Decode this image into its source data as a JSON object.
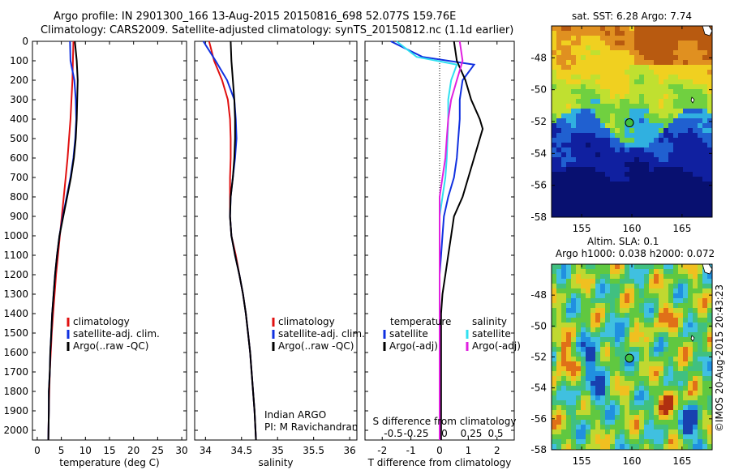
{
  "title_line1": "Argo profile: IN 2901300_166 13-Aug-2015 20150816_698 52.077S 159.76E",
  "title_line2": "Climatology: CARS2009. Satellite-adjusted climatology: synTS_20150812.nc (1.1d earlier)",
  "colors": {
    "climatology": "#e01010",
    "satellite": "#1030e0",
    "argo": "#000000",
    "sat_salinity": "#30e0f0",
    "argo_salinity": "#e020e0",
    "marker": "#40c040"
  },
  "chart_data": [
    {
      "type": "line",
      "name": "temperature",
      "xlabel": "temperature (deg C)",
      "ylabel": "",
      "xlim": [
        -1,
        31
      ],
      "ylim": [
        2050,
        0
      ],
      "xticks": [
        0,
        5,
        10,
        15,
        20,
        25,
        30
      ],
      "yticks": [
        0,
        100,
        200,
        300,
        400,
        500,
        600,
        700,
        800,
        900,
        1000,
        1100,
        1200,
        1300,
        1400,
        1500,
        1600,
        1700,
        1800,
        1900,
        2000
      ],
      "legend": [
        "climatology",
        "satellite-adj. clim.",
        "Argo(..raw -QC)"
      ],
      "series": [
        {
          "name": "climatology",
          "x": [
            7.5,
            7.4,
            7.3,
            7.1,
            6.9,
            6.6,
            6.3,
            5.9,
            5.5,
            5.1,
            4.7,
            4.3,
            3.9,
            3.6,
            3.3,
            3.0,
            2.8,
            2.6,
            2.5,
            2.4,
            2.3
          ],
          "y": [
            0,
            100,
            200,
            300,
            400,
            500,
            600,
            700,
            800,
            900,
            1000,
            1100,
            1200,
            1300,
            1400,
            1500,
            1600,
            1700,
            1800,
            1900,
            2050
          ]
        },
        {
          "name": "satellite-adj. clim.",
          "x": [
            6.8,
            6.9,
            7.7,
            8.0,
            8.1,
            7.9,
            7.5,
            6.9,
            6.1,
            5.3,
            4.6,
            4.1,
            3.7,
            3.4,
            3.1,
            2.9,
            2.7,
            2.6,
            2.4,
            2.4,
            2.3
          ],
          "y": [
            0,
            100,
            200,
            300,
            400,
            500,
            600,
            700,
            800,
            900,
            1000,
            1100,
            1200,
            1300,
            1400,
            1500,
            1600,
            1700,
            1800,
            1900,
            2050
          ]
        },
        {
          "name": "Argo(..raw -QC)",
          "x": [
            7.8,
            8.2,
            8.4,
            8.3,
            8.2,
            8.0,
            7.6,
            7.0,
            6.2,
            5.4,
            4.6,
            4.1,
            3.7,
            3.4,
            3.1,
            2.9,
            2.7,
            2.6,
            2.4,
            2.4,
            2.3
          ],
          "y": [
            0,
            100,
            200,
            300,
            400,
            500,
            600,
            700,
            800,
            900,
            1000,
            1100,
            1200,
            1300,
            1400,
            1500,
            1600,
            1700,
            1800,
            1900,
            2050
          ]
        }
      ]
    },
    {
      "type": "line",
      "name": "salinity",
      "xlabel": "salinity",
      "xlim": [
        33.85,
        36.1
      ],
      "ylim": [
        2050,
        0
      ],
      "xticks": [
        34,
        34.5,
        35,
        35.5,
        36
      ],
      "yticks": [
        0,
        100,
        200,
        300,
        400,
        500,
        600,
        700,
        800,
        900,
        1000,
        1100,
        1200,
        1300,
        1400,
        1500,
        1600,
        1700,
        1800,
        1900,
        2000
      ],
      "legend": [
        "climatology",
        "satellite-adj. clim.",
        "Argo(..raw -QC)"
      ],
      "annotation": [
        "Indian ARGO",
        "PI: M Ravichandran"
      ],
      "series": [
        {
          "name": "climatology",
          "x": [
            34.05,
            34.12,
            34.23,
            34.31,
            34.34,
            34.35,
            34.35,
            34.34,
            34.34,
            34.34,
            34.36,
            34.42,
            34.47,
            34.52,
            34.56,
            34.59,
            34.62,
            34.64,
            34.66,
            34.68,
            34.7
          ],
          "y": [
            0,
            100,
            200,
            300,
            400,
            500,
            600,
            700,
            800,
            900,
            1000,
            1100,
            1200,
            1300,
            1400,
            1500,
            1600,
            1700,
            1800,
            1900,
            2050
          ]
        },
        {
          "name": "satellite-adj. clim.",
          "x": [
            33.97,
            34.14,
            34.3,
            34.4,
            34.42,
            34.43,
            34.41,
            34.38,
            34.35,
            34.34,
            34.36,
            34.41,
            34.47,
            34.52,
            34.56,
            34.59,
            34.62,
            34.64,
            34.66,
            34.68,
            34.7
          ],
          "y": [
            0,
            100,
            200,
            300,
            400,
            500,
            600,
            700,
            800,
            900,
            1000,
            1100,
            1200,
            1300,
            1400,
            1500,
            1600,
            1700,
            1800,
            1900,
            2050
          ]
        },
        {
          "name": "Argo(..raw -QC)",
          "x": [
            34.35,
            34.36,
            34.38,
            34.4,
            34.41,
            34.41,
            34.4,
            34.38,
            34.35,
            34.34,
            34.36,
            34.41,
            34.47,
            34.52,
            34.56,
            34.59,
            34.62,
            34.64,
            34.66,
            34.68,
            34.7
          ],
          "y": [
            0,
            100,
            200,
            300,
            400,
            500,
            600,
            700,
            800,
            900,
            1000,
            1100,
            1200,
            1300,
            1400,
            1500,
            1600,
            1700,
            1800,
            1900,
            2050
          ]
        }
      ]
    },
    {
      "type": "line",
      "name": "difference",
      "xlabel": "T difference from climatology",
      "xlabel_top": "S difference from climatology",
      "xlim": [
        -2.6,
        2.6
      ],
      "ylim": [
        2050,
        0
      ],
      "xticks": [
        -2,
        -1,
        0,
        1,
        2
      ],
      "xticks_top": [
        "-0.5",
        "-0.25",
        "0",
        "0.25",
        "0.5"
      ],
      "yticks": [
        0,
        100,
        200,
        300,
        400,
        500,
        600,
        700,
        800,
        900,
        1000,
        1100,
        1200,
        1300,
        1400,
        1500,
        1600,
        1700,
        1800,
        1900,
        2000
      ],
      "legend_titles": [
        "temperature",
        "salinity"
      ],
      "legend": [
        "satellite",
        "Argo(-adj)",
        "satellite",
        "Argo(-adj)"
      ],
      "series": [
        {
          "name": "temperature satellite",
          "x": [
            -1.7,
            -0.6,
            1.2,
            0.8,
            0.7,
            0.7,
            0.6,
            0.5,
            0.3,
            0.15,
            0.1,
            0.05,
            0.0,
            0.0,
            0.0,
            0.0,
            0.0,
            0.0,
            0.0,
            0.0,
            0.0
          ],
          "y": [
            0,
            80,
            120,
            200,
            300,
            400,
            600,
            700,
            800,
            900,
            1000,
            1100,
            1200,
            1300,
            1400,
            1500,
            1600,
            1700,
            1800,
            1900,
            2050
          ]
        },
        {
          "name": "temperature Argo(-adj)",
          "x": [
            0.5,
            0.6,
            0.9,
            1.1,
            1.4,
            1.5,
            1.2,
            1.0,
            0.8,
            0.5,
            0.4,
            0.3,
            0.2,
            0.1,
            0.05,
            0.05,
            0.05,
            0.05,
            0.05,
            0.05,
            0.05
          ],
          "y": [
            0,
            100,
            200,
            300,
            400,
            450,
            600,
            700,
            800,
            900,
            1000,
            1100,
            1200,
            1300,
            1400,
            1500,
            1600,
            1700,
            1800,
            1900,
            2050
          ]
        },
        {
          "name": "salinity satellite",
          "x": [
            -1.5,
            -0.8,
            0.6,
            0.4,
            0.3,
            0.3,
            0.25,
            0.2,
            0.1,
            0.0,
            0.0,
            0.0,
            0.0,
            0.0,
            0.0,
            0.0,
            0.0,
            0.0,
            0.0,
            0.0,
            0.0
          ],
          "y": [
            0,
            80,
            120,
            200,
            300,
            400,
            600,
            700,
            800,
            900,
            1000,
            1100,
            1200,
            1300,
            1400,
            1500,
            1600,
            1700,
            1800,
            1900,
            2050
          ]
        },
        {
          "name": "salinity Argo(-adj)",
          "x": [
            0.7,
            0.8,
            0.6,
            0.4,
            0.3,
            0.25,
            0.2,
            0.1,
            0.0,
            0.0,
            0.0,
            0.0,
            0.0,
            0.0,
            0.0,
            0.0,
            0.0,
            0.0,
            0.0,
            0.0,
            0.0
          ],
          "y": [
            0,
            100,
            200,
            300,
            400,
            500,
            600,
            700,
            800,
            900,
            1000,
            1100,
            1200,
            1300,
            1400,
            1500,
            1600,
            1700,
            1800,
            1900,
            2050
          ]
        }
      ]
    },
    {
      "type": "heatmap",
      "name": "sst-map",
      "title": "sat. SST: 6.28 Argo: 7.74",
      "xlim": [
        152,
        168
      ],
      "ylim": [
        -58,
        -46
      ],
      "xticks": [
        155,
        160,
        165
      ],
      "yticks": [
        -48,
        -50,
        -52,
        -54,
        -56,
        -58
      ],
      "marker": {
        "lon": 159.76,
        "lat": -52.077
      }
    },
    {
      "type": "heatmap",
      "name": "sla-map",
      "title": "Altim. SLA: 0.1",
      "subtitle": "Argo h1000: 0.038 h2000: 0.072",
      "xlim": [
        152,
        168
      ],
      "ylim": [
        -58,
        -46
      ],
      "xticks": [
        155,
        160,
        165
      ],
      "yticks": [
        -48,
        -50,
        -52,
        -54,
        -56,
        -58
      ],
      "marker": {
        "lon": 159.76,
        "lat": -52.077
      }
    }
  ],
  "credit": "©IMOS 20-Aug-2015 20:43:23"
}
